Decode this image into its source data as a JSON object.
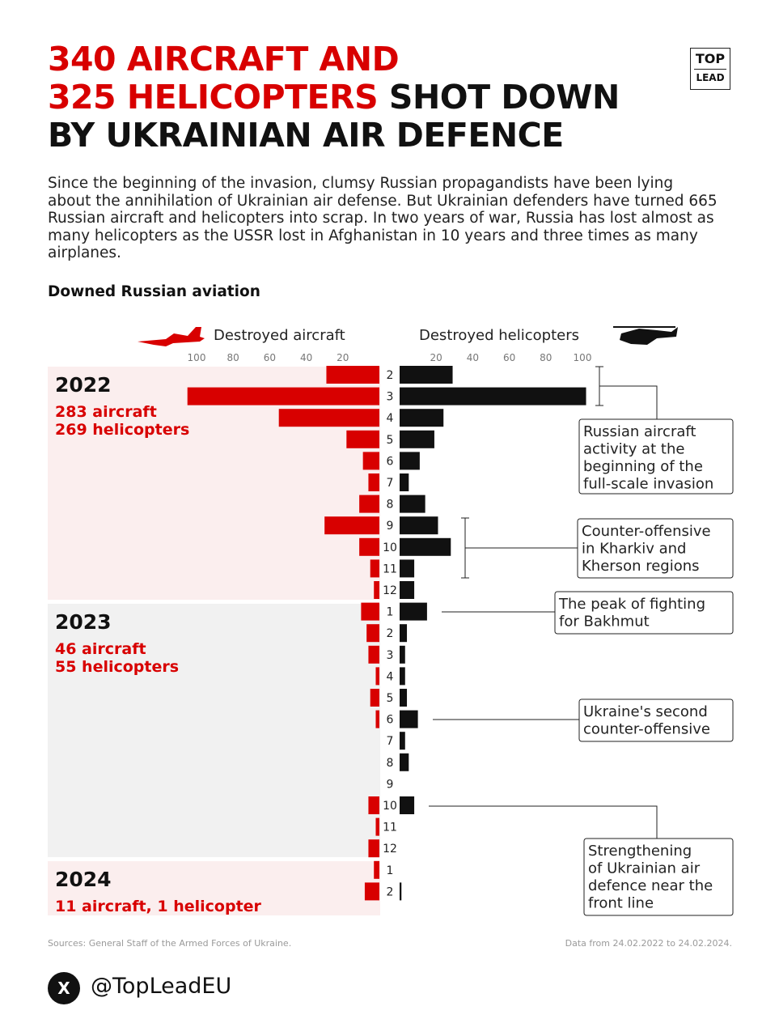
{
  "header": {
    "title_red_1": "340 AIRCRAFT AND",
    "title_red_2": "325 HELICOPTERS",
    "title_black_1": "SHOT DOWN",
    "title_black_2": "BY UKRAINIAN AIR DEFENCE",
    "logo_top": "TOP",
    "logo_bottom": "LEAD"
  },
  "intro": "Since the beginning of the invasion, clumsy Russian propagandists have been lying about the annihilation of Ukrainian air defense. But Ukrainian defenders have turned 665 Russian aircraft and helicopters into scrap. In two years of war, Russia has lost almost as many helicopters as the USSR lost in Afghanistan in 10 years and three times as many airplanes.",
  "colors": {
    "accent": "#d80000",
    "black": "#111111",
    "panel_pink": "#fbeeee",
    "panel_gray": "#f1f1f1"
  },
  "chart_data": {
    "type": "bar",
    "title": "Downed Russian aviation",
    "orientation": "horizontal-diverging",
    "left_series_name": "Destroyed aircraft",
    "right_series_name": "Destroyed helicopters",
    "left_ticks": [
      "100",
      "80",
      "60",
      "40",
      "20"
    ],
    "right_ticks": [
      "20",
      "40",
      "60",
      "80",
      "100"
    ],
    "xlim": [
      0,
      100
    ],
    "categories": [
      "2",
      "3",
      "4",
      "5",
      "6",
      "7",
      "8",
      "9",
      "10",
      "11",
      "12",
      "1",
      "2",
      "3",
      "4",
      "5",
      "6",
      "7",
      "8",
      "9",
      "10",
      "11",
      "12",
      "1",
      "2"
    ],
    "series": [
      {
        "name": "Destroyed aircraft",
        "color": "#d80000",
        "values": [
          29,
          105,
          55,
          18,
          9,
          6,
          11,
          30,
          11,
          5,
          3,
          10,
          7,
          6,
          2,
          5,
          2,
          0,
          0,
          0,
          6,
          2,
          6,
          3,
          8
        ]
      },
      {
        "name": "Destroyed helicopters",
        "color": "#111111",
        "values": [
          29,
          102,
          24,
          19,
          11,
          5,
          14,
          21,
          28,
          8,
          8,
          15,
          4,
          3,
          3,
          4,
          10,
          3,
          5,
          0,
          8,
          0,
          0,
          0,
          1
        ]
      }
    ],
    "groups": [
      {
        "year": "2022",
        "aircraft_label": "283 aircraft",
        "helicopters_label": "269 helicopters"
      },
      {
        "year": "2023",
        "aircraft_label": "46 aircraft",
        "helicopters_label": "55 helicopters"
      },
      {
        "year": "2024",
        "aircraft_label": "11 aircraft, 1 helicopter"
      }
    ],
    "annotations": [
      "Russian aircraft activity at the beginning of the full-scale invasion",
      "Counter-offensive in Kharkiv and Kherson regions",
      "The peak of fighting for Bakhmut",
      "Ukraine's second counter-offensive",
      "Strengthening of Ukrainian air defence near the front line"
    ]
  },
  "footer": {
    "source": "Sources: General Staff of the Armed Forces of Ukraine.",
    "date_range": "Data from 24.02.2022 to 24.02.2024.",
    "x_icon_text": "X",
    "handle": "@TopLeadEU"
  }
}
